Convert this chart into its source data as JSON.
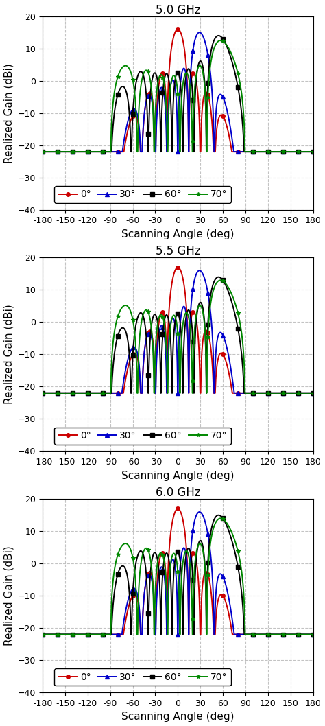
{
  "titles": [
    "5.0 GHz",
    "5.5 GHz",
    "6.0 GHz"
  ],
  "xlabel": "Scanning Angle (deg)",
  "ylabel": "Realized Gain (dBi)",
  "xlim": [
    -180,
    180
  ],
  "ylim": [
    -40,
    20
  ],
  "xticks": [
    -180,
    -150,
    -120,
    -90,
    -60,
    -30,
    0,
    30,
    60,
    90,
    120,
    150,
    180
  ],
  "yticks": [
    -40,
    -30,
    -20,
    -10,
    0,
    10,
    20
  ],
  "legend_labels": [
    "0°",
    "30°",
    "60°",
    "70°"
  ],
  "colors": [
    "#cc0000",
    "#0000cc",
    "#000000",
    "#008800"
  ],
  "markers": [
    "o",
    "^",
    "s",
    "*"
  ],
  "line_width": 1.4,
  "marker_size": 4,
  "figsize": [
    4.74,
    10.58
  ],
  "dpi": 100,
  "title_fontsize": 12,
  "label_fontsize": 11,
  "tick_fontsize": 9,
  "legend_fontsize": 10,
  "grid_color": "#aaaaaa",
  "grid_linestyle": "--",
  "grid_alpha": 0.7
}
